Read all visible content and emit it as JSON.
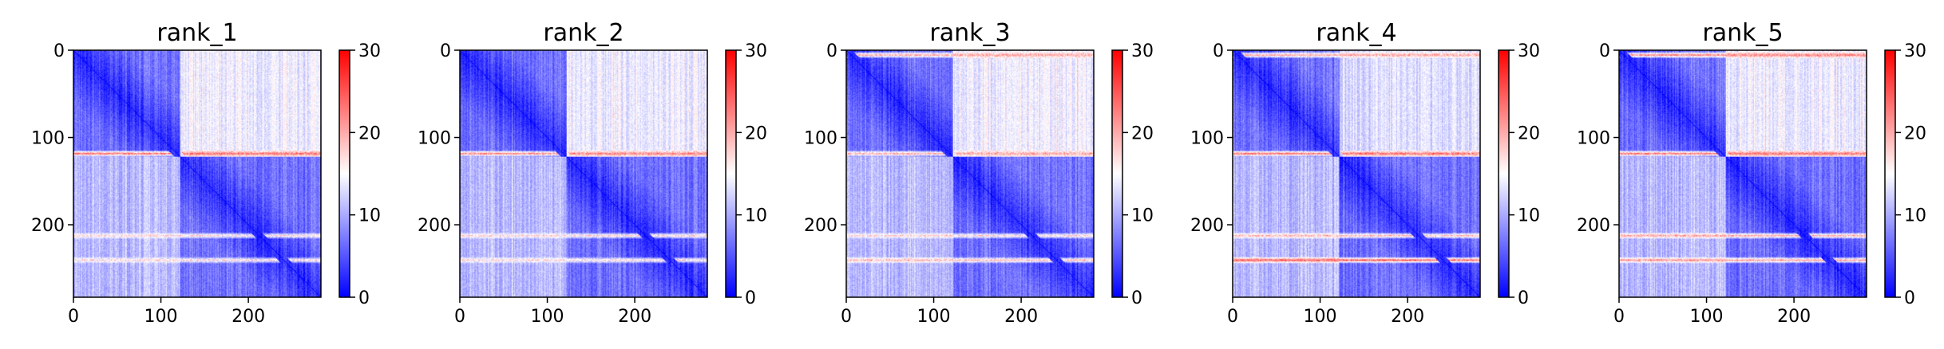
{
  "chart_data": {
    "type": "heatmap",
    "colormap": "bwr",
    "colormap_colors": [
      "#0000ff",
      "#ffffff",
      "#ff0000"
    ],
    "seq_len": 283,
    "shared": {
      "xticks": [
        0,
        100,
        200
      ],
      "yticks": [
        0,
        100,
        200
      ],
      "xlim": [
        0,
        283
      ],
      "ylim": [
        283,
        0
      ],
      "colorbar_range": [
        0,
        30
      ],
      "colorbar_ticks": [
        0,
        10,
        20,
        30
      ]
    },
    "panels": [
      {
        "title": "rank_1",
        "blocks": [
          {
            "start": 0,
            "end": 122
          },
          {
            "start": 122,
            "end": 283
          }
        ],
        "offdiag_level": [
          {
            "rows": [
              0,
              122
            ],
            "cols": [
              122,
              283
            ],
            "value": 14
          },
          {
            "rows": [
              122,
              283
            ],
            "cols": [
              0,
              122
            ],
            "value": 11
          }
        ],
        "bands": [
          {
            "index": 118,
            "value": 23
          },
          {
            "index": 212,
            "value": 17
          },
          {
            "index": 240,
            "value": 17
          }
        ]
      },
      {
        "title": "rank_2",
        "blocks": [
          {
            "start": 0,
            "end": 122
          },
          {
            "start": 122,
            "end": 283
          }
        ],
        "offdiag_level": [
          {
            "rows": [
              0,
              122
            ],
            "cols": [
              122,
              283
            ],
            "value": 14
          },
          {
            "rows": [
              122,
              283
            ],
            "cols": [
              0,
              122
            ],
            "value": 11
          }
        ],
        "bands": [
          {
            "index": 118,
            "value": 22
          },
          {
            "index": 212,
            "value": 17
          },
          {
            "index": 240,
            "value": 17
          }
        ]
      },
      {
        "title": "rank_3",
        "blocks": [
          {
            "start": 0,
            "end": 122
          },
          {
            "start": 122,
            "end": 283
          }
        ],
        "offdiag_level": [
          {
            "rows": [
              0,
              122
            ],
            "cols": [
              122,
              283
            ],
            "value": 14
          },
          {
            "rows": [
              122,
              283
            ],
            "cols": [
              0,
              122
            ],
            "value": 11
          }
        ],
        "bands": [
          {
            "index": 5,
            "value": 20
          },
          {
            "index": 118,
            "value": 20
          },
          {
            "index": 212,
            "value": 17
          },
          {
            "index": 240,
            "value": 19
          }
        ]
      },
      {
        "title": "rank_4",
        "blocks": [
          {
            "start": 0,
            "end": 122
          },
          {
            "start": 122,
            "end": 283
          }
        ],
        "offdiag_level": [
          {
            "rows": [
              0,
              122
            ],
            "cols": [
              122,
              283
            ],
            "value": 13
          },
          {
            "rows": [
              122,
              283
            ],
            "cols": [
              0,
              122
            ],
            "value": 11
          }
        ],
        "bands": [
          {
            "index": 5,
            "value": 20
          },
          {
            "index": 118,
            "value": 23
          },
          {
            "index": 212,
            "value": 19
          },
          {
            "index": 240,
            "value": 24
          }
        ]
      },
      {
        "title": "rank_5",
        "blocks": [
          {
            "start": 0,
            "end": 122
          },
          {
            "start": 122,
            "end": 283
          }
        ],
        "offdiag_level": [
          {
            "rows": [
              0,
              122
            ],
            "cols": [
              122,
              283
            ],
            "value": 14
          },
          {
            "rows": [
              122,
              283
            ],
            "cols": [
              0,
              122
            ],
            "value": 11
          }
        ],
        "bands": [
          {
            "index": 5,
            "value": 22
          },
          {
            "index": 118,
            "value": 23
          },
          {
            "index": 212,
            "value": 20
          },
          {
            "index": 240,
            "value": 21
          }
        ]
      }
    ]
  }
}
